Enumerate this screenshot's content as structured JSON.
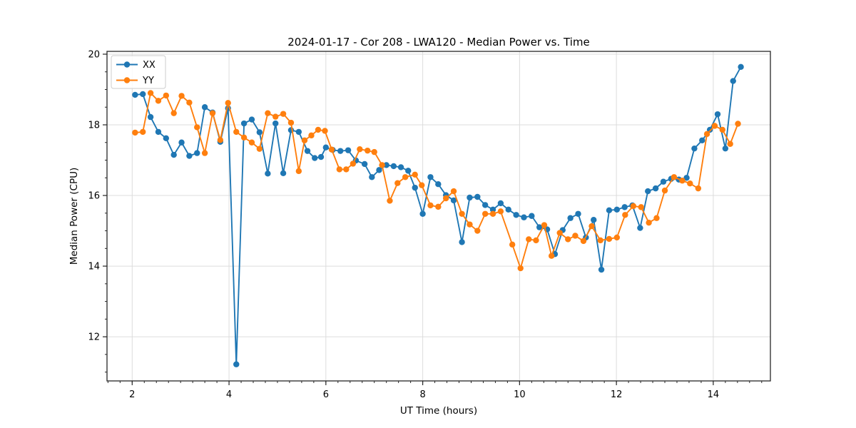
{
  "chart_data": {
    "type": "line",
    "title": "2024-01-17 - Cor 208 - LWA120 - Median Power vs. Time",
    "xlabel": "UT Time (hours)",
    "ylabel": "Median Power (CPU)",
    "xlim": [
      1.48,
      15.18
    ],
    "ylim": [
      10.75,
      20.08
    ],
    "xticks": [
      2,
      4,
      6,
      8,
      10,
      12,
      14
    ],
    "yticks": [
      12,
      14,
      16,
      18,
      20
    ],
    "x_minor_step": 0.25,
    "y_minor_step": 0.5,
    "grid": true,
    "grid_color": "#dcdcdc",
    "spine_color": "#262626",
    "legend_position": "upper left",
    "marker": "circle",
    "series": [
      {
        "name": "XX",
        "color": "#1f77b4",
        "x": [
          2.06,
          2.22,
          2.38,
          2.54,
          2.7,
          2.86,
          3.02,
          3.18,
          3.34,
          3.5,
          3.66,
          3.82,
          3.98,
          4.15,
          4.31,
          4.47,
          4.63,
          4.8,
          4.96,
          5.12,
          5.28,
          5.44,
          5.62,
          5.77,
          5.9,
          6.0,
          6.14,
          6.3,
          6.46,
          6.62,
          6.8,
          6.95,
          7.1,
          7.25,
          7.4,
          7.55,
          7.7,
          7.84,
          8.0,
          8.16,
          8.32,
          8.48,
          8.64,
          8.81,
          8.97,
          9.13,
          9.29,
          9.45,
          9.61,
          9.77,
          9.93,
          10.09,
          10.25,
          10.41,
          10.57,
          10.73,
          10.89,
          11.05,
          11.21,
          11.37,
          11.53,
          11.69,
          11.85,
          12.01,
          12.17,
          12.33,
          12.49,
          12.65,
          12.81,
          12.97,
          13.13,
          13.29,
          13.45,
          13.61,
          13.77,
          13.93,
          14.09,
          14.25,
          14.41,
          14.57
        ],
        "y": [
          18.85,
          18.87,
          18.22,
          17.8,
          17.62,
          17.15,
          17.5,
          17.12,
          17.2,
          18.5,
          18.35,
          17.52,
          18.47,
          11.22,
          18.04,
          18.15,
          17.79,
          16.62,
          18.04,
          16.63,
          17.85,
          17.8,
          17.26,
          17.06,
          17.09,
          17.36,
          17.29,
          17.26,
          17.28,
          16.99,
          16.89,
          16.52,
          16.72,
          16.86,
          16.83,
          16.8,
          16.7,
          16.22,
          15.48,
          16.52,
          16.32,
          16.01,
          15.86,
          14.68,
          15.94,
          15.96,
          15.73,
          15.6,
          15.78,
          15.6,
          15.45,
          15.38,
          15.42,
          15.1,
          15.04,
          14.34,
          15.02,
          15.36,
          15.48,
          14.81,
          15.31,
          13.9,
          15.58,
          15.6,
          15.67,
          15.72,
          15.08,
          16.12,
          16.2,
          16.39,
          16.47,
          16.45,
          16.5,
          17.33,
          17.56,
          17.86,
          18.3,
          17.33,
          19.24,
          19.64
        ]
      },
      {
        "name": "YY",
        "color": "#ff7f0e",
        "x": [
          2.06,
          2.22,
          2.38,
          2.54,
          2.7,
          2.86,
          3.02,
          3.18,
          3.34,
          3.5,
          3.66,
          3.82,
          3.98,
          4.15,
          4.31,
          4.47,
          4.63,
          4.8,
          4.96,
          5.12,
          5.28,
          5.44,
          5.56,
          5.7,
          5.84,
          5.98,
          6.12,
          6.28,
          6.42,
          6.56,
          6.7,
          6.86,
          7.0,
          7.16,
          7.32,
          7.48,
          7.64,
          7.84,
          7.98,
          8.16,
          8.32,
          8.48,
          8.64,
          8.81,
          8.97,
          9.13,
          9.29,
          9.45,
          9.61,
          9.85,
          10.02,
          10.19,
          10.34,
          10.51,
          10.66,
          10.83,
          11.0,
          11.15,
          11.32,
          11.49,
          11.67,
          11.85,
          12.01,
          12.18,
          12.35,
          12.51,
          12.67,
          12.83,
          13.0,
          13.19,
          13.36,
          13.52,
          13.69,
          13.87,
          14.03,
          14.19,
          14.35,
          14.51
        ],
        "y": [
          17.78,
          17.8,
          18.9,
          18.68,
          18.83,
          18.33,
          18.82,
          18.63,
          17.93,
          17.2,
          18.33,
          17.57,
          18.62,
          17.8,
          17.64,
          17.5,
          17.32,
          18.33,
          18.23,
          18.31,
          18.06,
          16.69,
          17.56,
          17.7,
          17.86,
          17.83,
          17.3,
          16.74,
          16.74,
          16.9,
          17.31,
          17.27,
          17.23,
          16.86,
          15.85,
          16.35,
          16.52,
          16.59,
          16.29,
          15.72,
          15.68,
          15.92,
          16.12,
          15.48,
          15.18,
          15.0,
          15.48,
          15.48,
          15.55,
          14.61,
          13.94,
          14.76,
          14.73,
          15.16,
          14.29,
          14.94,
          14.76,
          14.86,
          14.71,
          15.13,
          14.73,
          14.77,
          14.81,
          15.45,
          15.7,
          15.67,
          15.23,
          15.36,
          16.14,
          16.52,
          16.42,
          16.34,
          16.2,
          17.74,
          17.97,
          17.86,
          17.46,
          18.03
        ]
      }
    ]
  }
}
